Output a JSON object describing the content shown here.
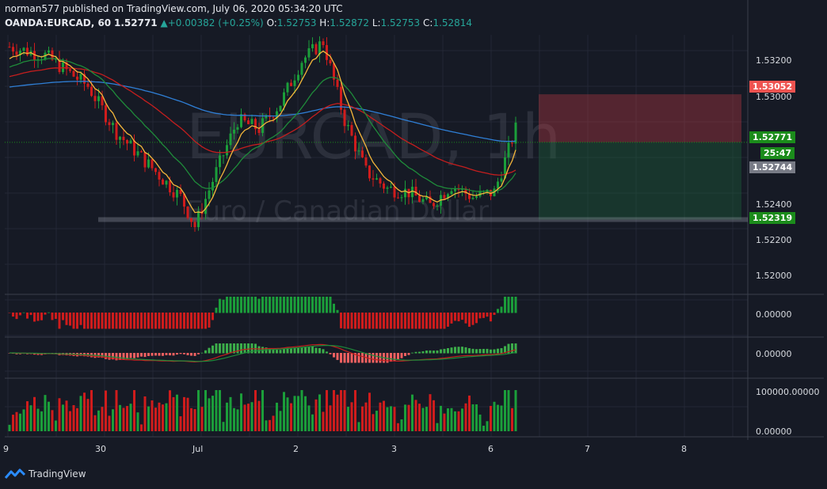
{
  "header": {
    "line1": "norman577 published on TradingView.com, July 06, 2020 05:34:20 UTC",
    "symbol": "OANDA:EURCAD, 60",
    "last": "1.52771",
    "change": "+0.00382 (+0.25%)",
    "o_label": "O:",
    "o_value": "1.52753",
    "h_label": "H:",
    "h_value": "1.52872",
    "l_label": "L:",
    "l_value": "1.52753",
    "c_label": "C:",
    "c_value": "1.52814"
  },
  "watermark": {
    "symbol": "EURCAD, 1h",
    "description": "Euro / Canadian Dollar"
  },
  "price_axis": [
    "1.53200",
    "1.53000",
    "1.52400",
    "1.52200",
    "1.52000"
  ],
  "price_labels": {
    "stop": "1.53052",
    "current": "1.52771",
    "countdown": "25:47",
    "ma": "1.52744",
    "target": "1.52319"
  },
  "indicator_axis": {
    "osc1": "0.00000",
    "osc2": "0.00000",
    "vol_high": "100000.00000",
    "vol_low": "0.00000"
  },
  "time_axis": [
    "9",
    "30",
    "Jul",
    "2",
    "3",
    "6",
    "7",
    "8"
  ],
  "brand": "TradingView",
  "colors": {
    "bg": "#161a25",
    "up": "#26a69a",
    "bull": "#1b9e3a",
    "bear": "#d01c1c",
    "ema_fast": "#f5b73b",
    "ema_mid": "#1f8b3a",
    "ema_slow": "#c41e1e",
    "sma_long": "#2f7fd6"
  },
  "chart_data": {
    "type": "candlestick",
    "ylim": [
      1.519,
      1.534
    ],
    "x_ticks": [
      "9",
      "30",
      "Jul",
      "2",
      "3",
      "6",
      "7",
      "8"
    ],
    "price_path": [
      [
        0,
        1.5333
      ],
      [
        10,
        1.5328
      ],
      [
        22,
        1.531
      ],
      [
        30,
        1.5283
      ],
      [
        40,
        1.5262
      ],
      [
        48,
        1.5245
      ],
      [
        52,
        1.5228
      ],
      [
        58,
        1.526
      ],
      [
        64,
        1.529
      ],
      [
        70,
        1.5285
      ],
      [
        76,
        1.53
      ],
      [
        82,
        1.5325
      ],
      [
        88,
        1.5336
      ],
      [
        94,
        1.529
      ],
      [
        100,
        1.526
      ],
      [
        106,
        1.525
      ],
      [
        112,
        1.5248
      ],
      [
        118,
        1.524
      ],
      [
        124,
        1.5252
      ],
      [
        130,
        1.5245
      ],
      [
        136,
        1.5248
      ],
      [
        142,
        1.5285
      ]
    ],
    "trade_box": {
      "stop": 1.53052,
      "entry": 1.52771,
      "target": 1.52319
    },
    "current_price": 1.52771
  }
}
